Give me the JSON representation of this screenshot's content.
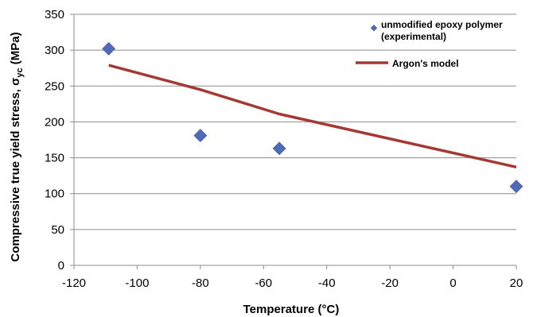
{
  "chart_data": {
    "type": "scatter",
    "xlabel": "Temperature (°C)",
    "ylabel_main": "Compressive true yield stress, σ",
    "ylabel_sub": "yc",
    "ylabel_unit": " (MPa)",
    "xlim": [
      -120,
      20
    ],
    "ylim": [
      0,
      350
    ],
    "xticks": [
      "-120",
      "-100",
      "-80",
      "-60",
      "-40",
      "-20",
      "0",
      "20"
    ],
    "xtick_values": [
      -120,
      -100,
      -80,
      -60,
      -40,
      -20,
      0,
      20
    ],
    "yticks": [
      "0",
      "50",
      "100",
      "150",
      "200",
      "250",
      "300",
      "350"
    ],
    "ytick_values": [
      0,
      50,
      100,
      150,
      200,
      250,
      300,
      350
    ],
    "grid": "horizontal",
    "legend_position": "top-right",
    "series": [
      {
        "name_line1": "unmodified epoxy polymer",
        "name_line2": "(experimental)",
        "marker": "diamond",
        "color": "#4F6BB5",
        "x": [
          -109,
          -80,
          -55,
          20
        ],
        "y": [
          302,
          181,
          163,
          110
        ]
      },
      {
        "name": "Argon's model",
        "marker": "line",
        "color": "#A33A35",
        "x": [
          -109,
          -80,
          -55,
          20
        ],
        "y": [
          279,
          245,
          211,
          137
        ]
      }
    ]
  }
}
